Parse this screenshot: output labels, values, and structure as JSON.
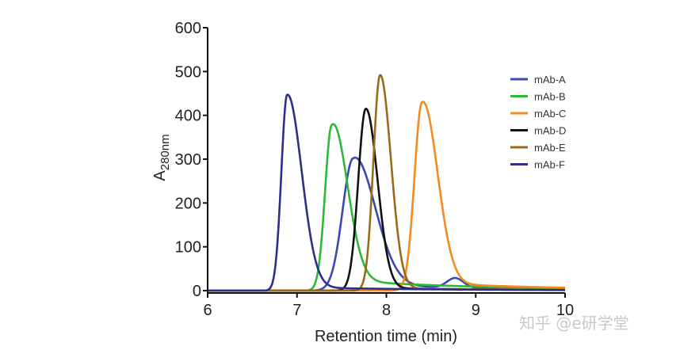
{
  "chart_data": {
    "type": "line",
    "title": "",
    "xlabel": "Retention time (min)",
    "ylabel_main": "A",
    "ylabel_sub": "280nm",
    "xlim": [
      6,
      10
    ],
    "ylim": [
      0,
      600
    ],
    "x_ticks": [
      "6",
      "7",
      "8",
      "9",
      "10"
    ],
    "y_ticks": [
      "0",
      "100",
      "200",
      "300",
      "400",
      "500",
      "600"
    ],
    "legend_position": "top-right",
    "series": [
      {
        "name": "mAb-A",
        "color": "#3a49b0",
        "peak_x": 7.63,
        "peak_y": 302,
        "sigma_left": 0.12,
        "sigma_right": 0.24,
        "tail": 14,
        "hump_x": 8.77,
        "hump_y": 22
      },
      {
        "name": "mAb-B",
        "color": "#2db83a",
        "peak_x": 7.39,
        "peak_y": 378,
        "sigma_left": 0.075,
        "sigma_right": 0.17,
        "tail": 25
      },
      {
        "name": "mAb-C",
        "color": "#f38b1f",
        "peak_x": 8.4,
        "peak_y": 430,
        "sigma_left": 0.085,
        "sigma_right": 0.17,
        "tail": 18
      },
      {
        "name": "mAb-D",
        "color": "#111111",
        "peak_x": 7.77,
        "peak_y": 415,
        "sigma_left": 0.085,
        "sigma_right": 0.13,
        "tail": 6
      },
      {
        "name": "mAb-E",
        "color": "#9a6a17",
        "peak_x": 7.93,
        "peak_y": 492,
        "sigma_left": 0.075,
        "sigma_right": 0.12,
        "tail": 6
      },
      {
        "name": "mAb-F",
        "color": "#2e2e8c",
        "peak_x": 6.89,
        "peak_y": 447,
        "sigma_left": 0.065,
        "sigma_right": 0.16,
        "tail": 8
      }
    ]
  },
  "watermark": "知乎 @e研学堂"
}
